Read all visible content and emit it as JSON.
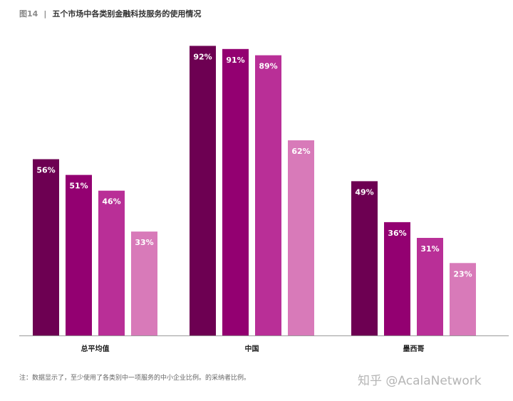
{
  "figure_label": "图14",
  "separator": "|",
  "title": "五个市场中各类别金融科技服务的使用情况",
  "note": "注：数据显示了，至少使用了各类别中一项服务的中小企业比例。的采纳者比例。",
  "watermark": "知乎 @AcalaNetwork",
  "colors": [
    "#6d0052",
    "#930071",
    "#b92f97",
    "#d87ab9"
  ],
  "chart_data": {
    "type": "bar",
    "title": "五个市场中各类别金融科技服务的使用情况",
    "categories": [
      "总平均值",
      "中国",
      "墨西哥"
    ],
    "series": [
      {
        "values": [
          56,
          92,
          49
        ]
      },
      {
        "values": [
          51,
          91,
          36
        ]
      },
      {
        "values": [
          46,
          89,
          31
        ]
      },
      {
        "values": [
          33,
          62,
          23
        ]
      }
    ],
    "value_labels": [
      [
        "56%",
        "51%",
        "46%",
        "33%"
      ],
      [
        "92%",
        "91%",
        "89%",
        "62%"
      ],
      [
        "49%",
        "36%",
        "31%",
        "23%"
      ]
    ],
    "ylim": [
      0,
      100
    ],
    "grid": false,
    "legend": "none"
  }
}
